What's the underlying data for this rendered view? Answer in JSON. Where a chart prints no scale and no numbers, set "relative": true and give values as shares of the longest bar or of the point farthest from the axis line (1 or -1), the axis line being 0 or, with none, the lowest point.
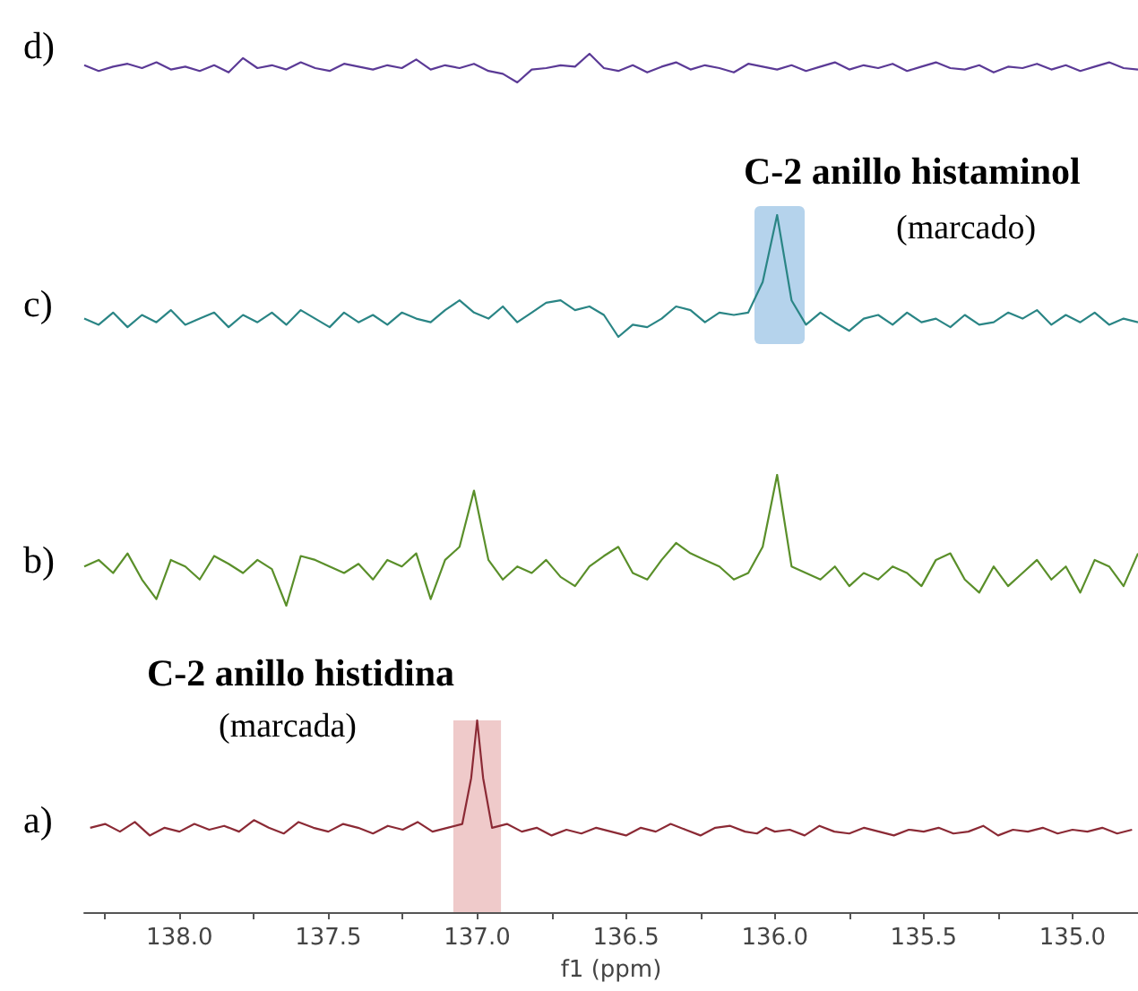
{
  "chart_data": [
    {
      "type": "line",
      "title": "d)",
      "relative": true,
      "tick_labels": false,
      "color": "#5b3a96",
      "categories": [
        null,
        null,
        null,
        null,
        null,
        null,
        null,
        null,
        null,
        null,
        null,
        null,
        null,
        null,
        null,
        null,
        null,
        null,
        null,
        null,
        null,
        null,
        null,
        null,
        null,
        null,
        null,
        null,
        null,
        null,
        null,
        null,
        null,
        null,
        null,
        null,
        null,
        null,
        null,
        null,
        null,
        null,
        null,
        null,
        null,
        null,
        null,
        null,
        null,
        null,
        null,
        null,
        null,
        null,
        null,
        null,
        null,
        null,
        null,
        null,
        null,
        null,
        null,
        null,
        null,
        null,
        null,
        null,
        null,
        null,
        null,
        null,
        null,
        null
      ],
      "values": [
        0.6,
        0.4,
        0.55,
        0.65,
        0.5,
        0.7,
        0.45,
        0.55,
        0.4,
        0.6,
        0.35,
        0.85,
        0.5,
        0.6,
        0.45,
        0.7,
        0.5,
        0.4,
        0.65,
        0.55,
        0.45,
        0.6,
        0.5,
        0.8,
        0.45,
        0.6,
        0.5,
        0.65,
        0.4,
        0.3,
        0,
        0.45,
        0.5,
        0.6,
        0.55,
        1,
        0.5,
        0.4,
        0.6,
        0.35,
        0.55,
        0.7,
        0.45,
        0.6,
        0.5,
        0.35,
        0.65,
        0.55,
        0.45,
        0.6,
        0.4,
        0.55,
        0.7,
        0.45,
        0.6,
        0.5,
        0.65,
        0.4,
        0.55,
        0.7,
        0.5,
        0.45,
        0.6,
        0.35,
        0.55,
        0.5,
        0.65,
        0.45,
        0.6,
        0.4,
        0.55,
        0.7,
        0.5,
        0.45
      ]
    },
    {
      "type": "line",
      "title": "c)",
      "relative": true,
      "tick_labels": false,
      "color": "#2a8585",
      "annotations": [
        "C-2 anillo histaminol",
        "(marcado)"
      ],
      "categories": [
        null,
        null,
        null,
        null,
        null,
        null,
        null,
        null,
        null,
        null,
        null,
        null,
        null,
        null,
        null,
        null,
        null,
        null,
        null,
        null,
        null,
        null,
        null,
        null,
        null,
        null,
        null,
        null,
        null,
        null,
        null,
        null,
        null,
        null,
        null,
        null,
        null,
        null,
        null,
        null,
        null,
        null,
        null,
        null,
        null,
        null,
        null,
        null,
        null,
        null,
        null,
        null,
        null,
        null,
        null,
        null,
        null,
        null,
        null,
        null,
        null,
        null,
        null,
        null,
        null,
        null,
        null,
        null,
        null,
        null,
        null,
        null,
        null,
        null
      ],
      "values": [
        0.15,
        0.1,
        0.2,
        0.08,
        0.18,
        0.12,
        0.22,
        0.1,
        0.15,
        0.2,
        0.08,
        0.18,
        0.12,
        0.2,
        0.1,
        0.22,
        0.15,
        0.08,
        0.2,
        0.12,
        0.18,
        0.1,
        0.2,
        0.15,
        0.12,
        0.22,
        0.3,
        0.2,
        0.15,
        0.25,
        0.12,
        0.2,
        0.28,
        0.3,
        0.22,
        0.25,
        0.18,
        0.0,
        0.1,
        0.08,
        0.15,
        0.25,
        0.22,
        0.12,
        0.2,
        0.18,
        0.2,
        0.45,
        1,
        0.3,
        0.1,
        0.2,
        0.12,
        0.05,
        0.15,
        0.18,
        0.1,
        0.2,
        0.12,
        0.15,
        0.08,
        0.18,
        0.1,
        0.12,
        0.2,
        0.15,
        0.22,
        0.1,
        0.18,
        0.12,
        0.2,
        0.1,
        0.15,
        0.12
      ]
    },
    {
      "type": "line",
      "title": "b)",
      "relative": true,
      "tick_labels": false,
      "color": "#5a8f2a",
      "categories": [
        null,
        null,
        null,
        null,
        null,
        null,
        null,
        null,
        null,
        null,
        null,
        null,
        null,
        null,
        null,
        null,
        null,
        null,
        null,
        null,
        null,
        null,
        null,
        null,
        null,
        null,
        null,
        null,
        null,
        null,
        null,
        null,
        null,
        null,
        null,
        null,
        null,
        null,
        null,
        null,
        null,
        null,
        null,
        null,
        null,
        null,
        null,
        null,
        null,
        null,
        null,
        null,
        null,
        null,
        null,
        null,
        null,
        null,
        null,
        null,
        null,
        null,
        null,
        null,
        null,
        null,
        null,
        null,
        null,
        null,
        null,
        null,
        null,
        null
      ],
      "values": [
        0.3,
        0.35,
        0.25,
        0.4,
        0.2,
        0.05,
        0.35,
        0.3,
        0.2,
        0.38,
        0.32,
        0.25,
        0.35,
        0.28,
        0.0,
        0.38,
        0.35,
        0.3,
        0.25,
        0.32,
        0.2,
        0.35,
        0.3,
        0.4,
        0.05,
        0.35,
        0.45,
        0.88,
        0.35,
        0.2,
        0.3,
        0.25,
        0.35,
        0.22,
        0.15,
        0.3,
        0.38,
        0.45,
        0.25,
        0.2,
        0.35,
        0.48,
        0.4,
        0.35,
        0.3,
        0.2,
        0.25,
        0.45,
        1,
        0.3,
        0.25,
        0.2,
        0.3,
        0.15,
        0.25,
        0.2,
        0.3,
        0.25,
        0.15,
        0.35,
        0.4,
        0.2,
        0.1,
        0.3,
        0.15,
        0.25,
        0.35,
        0.2,
        0.3,
        0.1,
        0.35,
        0.3,
        0.15,
        0.4
      ]
    },
    {
      "type": "line",
      "title": "a)",
      "relative": true,
      "xlim": [
        138.32,
        134.78
      ],
      "color": "#8b2a35",
      "xlabel": "f1 (ppm)",
      "annotations": [
        "C-2 anillo histidina",
        "(marcada)"
      ],
      "bands": [
        {
          "axis": "x",
          "from": 137.08,
          "to": 136.92,
          "color": "#eab8b8"
        }
      ],
      "xticks": [
        {
          "value": 138.25,
          "label": null
        },
        {
          "value": 138,
          "label": "138.0"
        },
        {
          "value": 137.75,
          "label": null
        },
        {
          "value": 137.5,
          "label": "137.5"
        },
        {
          "value": 137.25,
          "label": null
        },
        {
          "value": 137,
          "label": "137.0"
        },
        {
          "value": 136.75,
          "label": null
        },
        {
          "value": 136.5,
          "label": "136.5"
        },
        {
          "value": 136.25,
          "label": null
        },
        {
          "value": 136,
          "label": "136.0"
        },
        {
          "value": 135.75,
          "label": null
        },
        {
          "value": 135.5,
          "label": "135.5"
        },
        {
          "value": 135.25,
          "label": null
        },
        {
          "value": 135,
          "label": "135.0"
        }
      ],
      "x": [
        138.3,
        138.25,
        138.2,
        138.15,
        138.1,
        138.05,
        138.0,
        137.95,
        137.9,
        137.85,
        137.8,
        137.75,
        137.7,
        137.65,
        137.6,
        137.55,
        137.5,
        137.45,
        137.4,
        137.35,
        137.3,
        137.25,
        137.2,
        137.15,
        137.1,
        137.05,
        137.02,
        137.0,
        136.98,
        136.95,
        136.9,
        136.85,
        136.8,
        136.75,
        136.7,
        136.65,
        136.6,
        136.55,
        136.5,
        136.45,
        136.4,
        136.35,
        136.3,
        136.25,
        136.2,
        136.15,
        136.1,
        136.06,
        136.03,
        136.0,
        135.95,
        135.9,
        135.85,
        135.8,
        135.75,
        135.7,
        135.65,
        135.6,
        135.55,
        135.5,
        135.45,
        135.4,
        135.35,
        135.3,
        135.25,
        135.2,
        135.15,
        135.1,
        135.05,
        135.0,
        134.95,
        134.9,
        134.85,
        134.8
      ],
      "values": [
        0.44,
        0.46,
        0.42,
        0.47,
        0.4,
        0.44,
        0.42,
        0.46,
        0.43,
        0.45,
        0.42,
        0.48,
        0.44,
        0.41,
        0.47,
        0.44,
        0.42,
        0.46,
        0.44,
        0.41,
        0.45,
        0.43,
        0.47,
        0.42,
        0.44,
        0.46,
        0.7,
        1,
        0.7,
        0.44,
        0.46,
        0.42,
        0.44,
        0.4,
        0.43,
        0.41,
        0.44,
        0.42,
        0.4,
        0.44,
        0.42,
        0.46,
        0.43,
        0.4,
        0.44,
        0.45,
        0.42,
        0.41,
        0.44,
        0.42,
        0.43,
        0.4,
        0.45,
        0.42,
        0.41,
        0.44,
        0.42,
        0.4,
        0.43,
        0.42,
        0.44,
        0.41,
        0.42,
        0.45,
        0.4,
        0.43,
        0.42,
        0.44,
        0.41,
        0.43,
        0.42,
        0.44,
        0.41,
        0.43
      ]
    }
  ]
}
